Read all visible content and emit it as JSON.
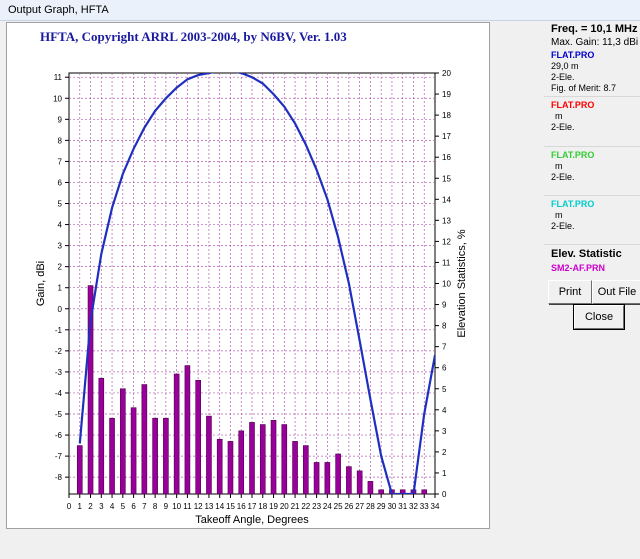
{
  "window": {
    "title": "Output Graph, HFTA"
  },
  "graph": {
    "title": "HFTA, Copyright ARRL 2003-2004, by N6BV, Ver. 1.03"
  },
  "side_panel": {
    "freq": "Freq. = 10,1 MHz",
    "max_gain": "Max. Gain: 11,3 dBi",
    "files": [
      {
        "name": "FLAT.PRO",
        "color": "#0000cc",
        "lines": [
          "29,0 m",
          "2-Ele.",
          "Fig. of Merit: 8.7"
        ]
      },
      {
        "name": "FLAT.PRO",
        "color": "#ff0000",
        "lines": [
          "m",
          "2-Ele."
        ]
      },
      {
        "name": "FLAT.PRO",
        "color": "#33cc33",
        "lines": [
          "m",
          "2-Ele."
        ]
      },
      {
        "name": "FLAT.PRO",
        "color": "#00cccc",
        "lines": [
          "m",
          "2-Ele."
        ]
      }
    ],
    "elev_title": "Elev. Statistic",
    "elev_file": "SM2-AF.PRN",
    "print_label": "Print",
    "out_file_label": "Out File",
    "close_label": "Close"
  },
  "chart_data": {
    "type": "bar",
    "xlabel": "Takeoff Angle, Degrees",
    "ylabel": "Gain, dBi",
    "y2label": "Elevation Statistics, %",
    "xlim": [
      0,
      34
    ],
    "ylim": [
      -8.8,
      11.2
    ],
    "y2lim": [
      0,
      20
    ],
    "x_ticks": [
      0,
      1,
      2,
      3,
      4,
      5,
      6,
      7,
      8,
      9,
      10,
      11,
      12,
      13,
      14,
      15,
      16,
      17,
      18,
      19,
      20,
      21,
      22,
      23,
      24,
      25,
      26,
      27,
      28,
      29,
      30,
      31,
      32,
      33,
      34
    ],
    "y_ticks": [
      -8,
      -7,
      -6,
      -5,
      -4,
      -3,
      -2,
      -1,
      0,
      1,
      2,
      3,
      4,
      5,
      6,
      7,
      8,
      9,
      10,
      11
    ],
    "y2_ticks": [
      0,
      1,
      2,
      3,
      4,
      5,
      6,
      7,
      8,
      9,
      10,
      11,
      12,
      13,
      14,
      15,
      16,
      17,
      18,
      19,
      20
    ],
    "grid": true,
    "bar_series": {
      "name": "Elevation Statistics",
      "axis": "right",
      "color": "#990099",
      "angles": [
        1,
        2,
        3,
        4,
        5,
        6,
        7,
        8,
        9,
        10,
        11,
        12,
        13,
        14,
        15,
        16,
        17,
        18,
        19,
        20,
        21,
        22,
        23,
        24,
        25,
        26,
        27,
        28,
        29,
        30,
        31,
        32,
        33
      ],
      "values": [
        2.3,
        9.9,
        5.5,
        3.6,
        5.0,
        4.1,
        5.2,
        3.6,
        3.6,
        5.7,
        6.1,
        5.4,
        3.7,
        2.6,
        2.5,
        3.0,
        3.4,
        3.3,
        3.5,
        3.3,
        2.5,
        2.3,
        1.5,
        1.5,
        1.9,
        1.3,
        1.1,
        0.6,
        0.2,
        0.2,
        0.2,
        0.2,
        0.2
      ]
    },
    "line_series": {
      "name": "FLAT.PRO",
      "axis": "left",
      "color": "#1f2fbf",
      "x": [
        1,
        2,
        3,
        4,
        5,
        6,
        7,
        8,
        9,
        10,
        11,
        12,
        13,
        14,
        15,
        16,
        17,
        18,
        19,
        20,
        21,
        22,
        23,
        24,
        25,
        26,
        27,
        28,
        29,
        30,
        31,
        32,
        33,
        34
      ],
      "y": [
        -6.4,
        -0.6,
        2.6,
        4.8,
        6.4,
        7.6,
        8.6,
        9.4,
        10.0,
        10.5,
        10.9,
        11.1,
        11.2,
        11.3,
        11.3,
        11.2,
        11.0,
        10.7,
        10.2,
        9.6,
        8.8,
        7.8,
        6.6,
        5.2,
        3.4,
        1.2,
        -1.5,
        -4.3,
        -7.0,
        -8.8,
        -8.8,
        -8.8,
        -5.0,
        -2.2
      ]
    }
  }
}
